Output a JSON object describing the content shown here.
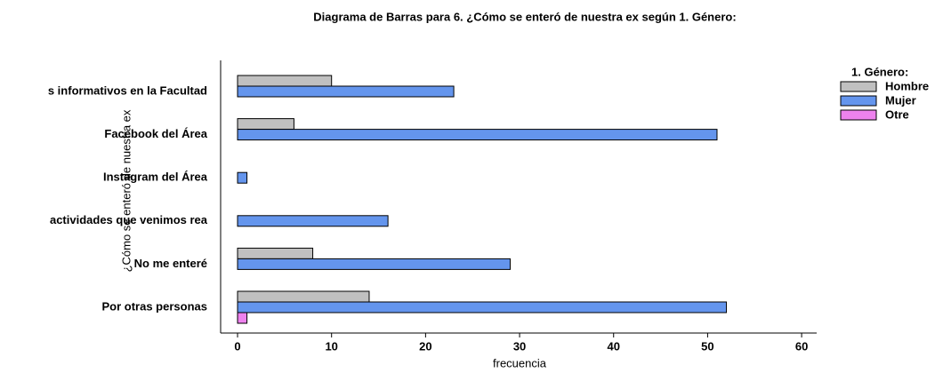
{
  "chart_data": {
    "type": "hbar",
    "title": "Diagrama de Barras para 6. ¿Cómo se enteró de nuestra ex según 1. Género:",
    "xlabel": "frecuencia",
    "ylabel": "¿Cómo se enteró de nuestra ex",
    "legend_title": "1. Género:",
    "categories": [
      "s informativos en la Facultad",
      "Facebook del Área",
      "Instagram del Área",
      "actividades que venimos rea",
      "No me enteré",
      "Por otras personas"
    ],
    "series": [
      {
        "name": "Hombre",
        "color": "#c0c0c0",
        "values": [
          10,
          6,
          0,
          0,
          8,
          14
        ]
      },
      {
        "name": "Mujer",
        "color": "#6495ed",
        "values": [
          23,
          51,
          1,
          16,
          29,
          52
        ]
      },
      {
        "name": "Otre",
        "color": "#ee82ee",
        "values": [
          0,
          0,
          0,
          0,
          0,
          1
        ]
      }
    ],
    "xlim": [
      -1.8,
      61.6
    ],
    "xticks": [
      0,
      10,
      20,
      30,
      40,
      50,
      60
    ],
    "legend": "right"
  }
}
